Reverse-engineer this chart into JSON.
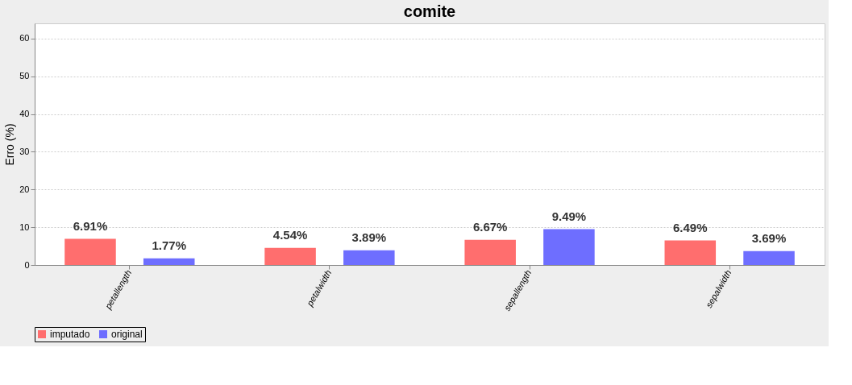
{
  "chart_data": {
    "type": "bar",
    "title": "comite",
    "ylabel": "Erro (%)",
    "categories": [
      "petallength",
      "petalwidth",
      "sepallength",
      "sepalwidth"
    ],
    "series": [
      {
        "name": "imputado",
        "color": "#ff6666",
        "values": [
          6.91,
          4.54,
          6.67,
          6.49
        ],
        "value_labels": [
          "6.91%",
          "4.54%",
          "6.67%",
          "6.49%"
        ]
      },
      {
        "name": "original",
        "color": "#6666ff",
        "values": [
          1.77,
          3.89,
          9.49,
          3.69
        ],
        "value_labels": [
          "1.77%",
          "3.89%",
          "9.49%",
          "3.69%"
        ]
      }
    ],
    "ylim": [
      0,
      64
    ],
    "yticks": [
      0,
      10,
      20,
      30,
      40,
      50,
      60
    ],
    "grid": "y",
    "legend": "bottom"
  }
}
